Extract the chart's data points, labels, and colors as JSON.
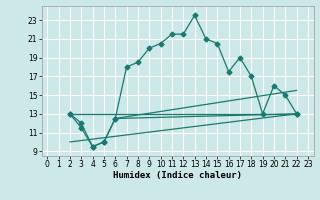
{
  "xlabel": "Humidex (Indice chaleur)",
  "background_color": "#cde8e8",
  "grid_color": "#ffffff",
  "line_color": "#1a7a6e",
  "xlim": [
    -0.5,
    23.5
  ],
  "ylim": [
    8.5,
    24.5
  ],
  "xticks": [
    0,
    1,
    2,
    3,
    4,
    5,
    6,
    7,
    8,
    9,
    10,
    11,
    12,
    13,
    14,
    15,
    16,
    17,
    18,
    19,
    20,
    21,
    22,
    23
  ],
  "yticks": [
    9,
    11,
    13,
    15,
    17,
    19,
    21,
    23
  ],
  "line1_x": [
    2,
    3,
    4,
    5,
    6,
    7,
    8,
    9,
    10,
    11,
    12,
    13,
    14,
    15,
    16,
    17,
    18,
    19,
    20,
    21,
    22
  ],
  "line1_y": [
    13,
    12,
    9.5,
    10,
    12.5,
    18,
    18.5,
    20,
    20.5,
    21.5,
    21.5,
    23.5,
    21,
    20.5,
    17.5,
    19,
    17,
    13,
    16,
    15,
    13
  ],
  "line2_x": [
    2,
    3,
    4,
    5,
    6,
    22
  ],
  "line2_y": [
    13,
    11.5,
    9.5,
    10,
    12.5,
    13
  ],
  "line3_x": [
    2,
    22
  ],
  "line3_y": [
    13,
    13
  ],
  "line4_x": [
    2,
    22
  ],
  "line4_y": [
    10,
    13
  ],
  "line5_x": [
    6,
    22
  ],
  "line5_y": [
    12.5,
    15.5
  ]
}
